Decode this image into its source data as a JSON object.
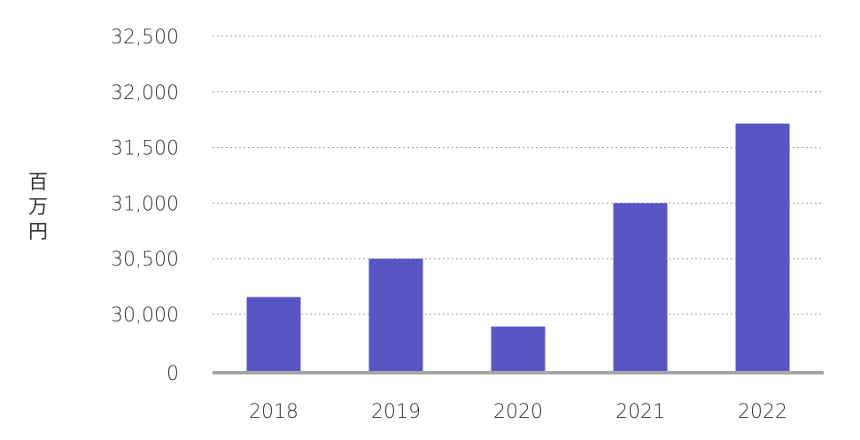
{
  "chart_data": {
    "type": "bar",
    "categories": [
      "2018",
      "2019",
      "2020",
      "2021",
      "2022"
    ],
    "values": [
      30155,
      30500,
      29890,
      31000,
      31715
    ],
    "ylabel": "百万円",
    "xlabel": "",
    "yticks": [
      0,
      30000,
      30500,
      31000,
      31500,
      32000,
      32500
    ],
    "ytick_labels": [
      "0",
      "30,000",
      "30,500",
      "31,000",
      "31,500",
      "32,000",
      "32,500"
    ],
    "axis_break": true,
    "grid": "dotted-horizontal",
    "legend": "none",
    "colors": {
      "bar": "#5856c2",
      "baseline": "#a6a6a6",
      "grid": "#9a9a9a",
      "text": "#333333"
    }
  }
}
